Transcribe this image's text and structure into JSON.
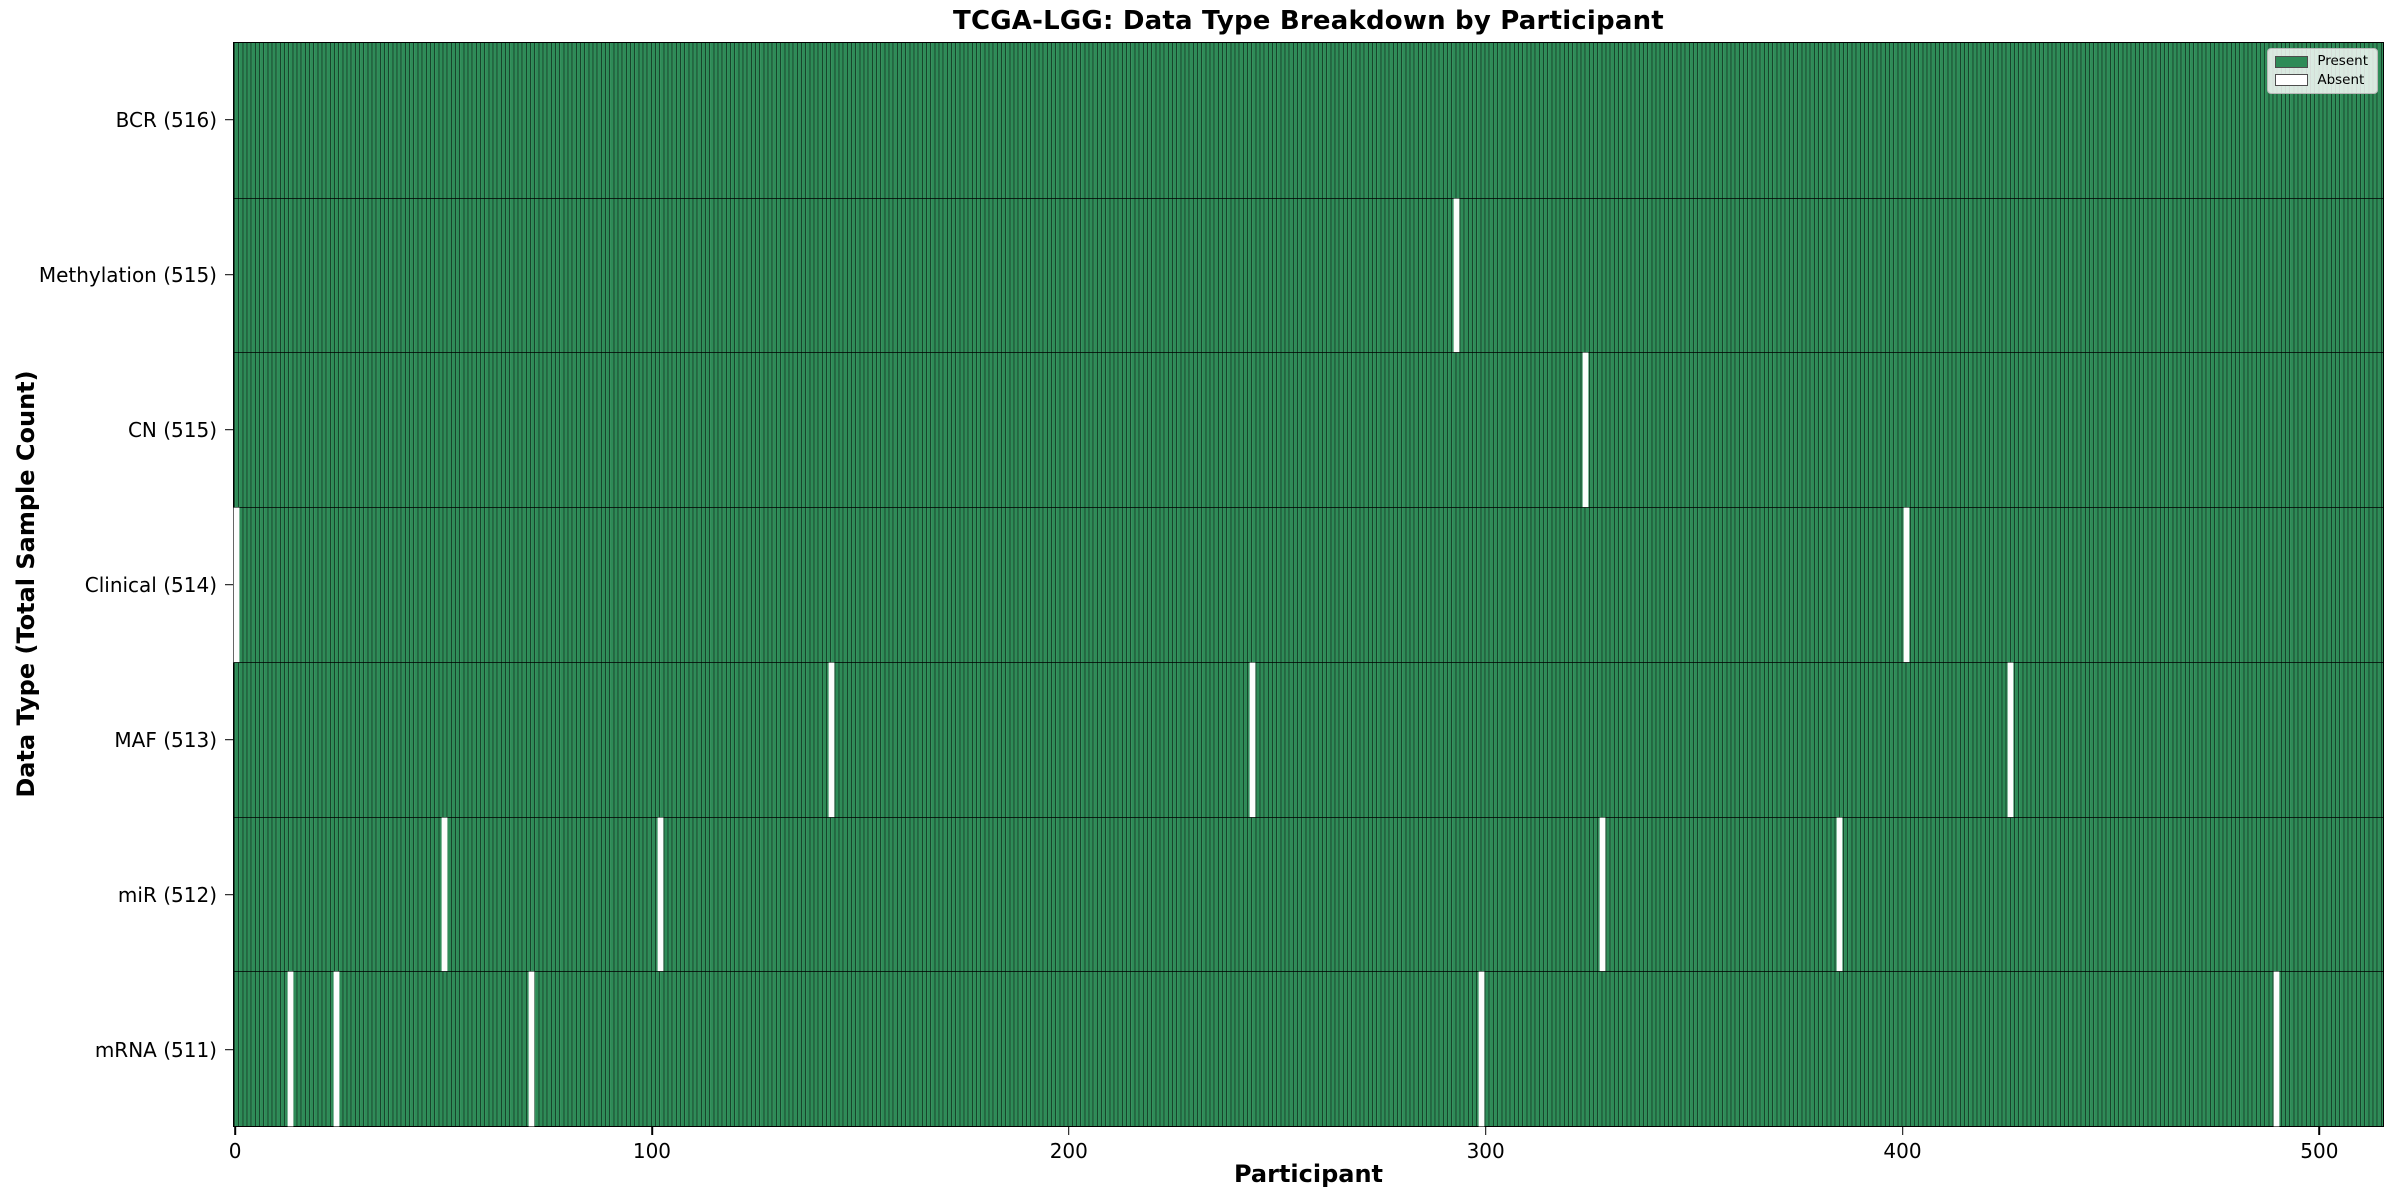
{
  "title": "TCGA-LGG: Data Type Breakdown by Participant",
  "chart_data": {
    "type": "heatmap",
    "title": "TCGA-LGG: Data Type Breakdown by Participant",
    "xlabel": "Participant",
    "ylabel": "Data Type (Total Sample Count)",
    "total_participants": 516,
    "x_ticks": [
      0,
      100,
      200,
      300,
      400,
      500
    ],
    "x_range": [
      0,
      516
    ],
    "grid": false,
    "legend_position": "upper right",
    "legend": {
      "present_label": "Present",
      "absent_label": "Absent"
    },
    "colors": {
      "present": "#2e8b57",
      "absent": "#fdfdfd",
      "bar_edge": "#1c4a30",
      "row_separator": "#1a1a1a"
    },
    "rows": [
      {
        "name": "BCR",
        "label": "BCR (516)",
        "present_count": 516,
        "absent_participants": []
      },
      {
        "name": "Methylation",
        "label": "Methylation (515)",
        "present_count": 515,
        "absent_participants": [
          293
        ]
      },
      {
        "name": "CN",
        "label": "CN (515)",
        "present_count": 515,
        "absent_participants": [
          324
        ]
      },
      {
        "name": "Clinical",
        "label": "Clinical (514)",
        "present_count": 514,
        "absent_participants": [
          0,
          401
        ]
      },
      {
        "name": "MAF",
        "label": "MAF (513)",
        "present_count": 513,
        "absent_participants": [
          143,
          244,
          426
        ]
      },
      {
        "name": "miR",
        "label": "miR (512)",
        "present_count": 512,
        "absent_participants": [
          50,
          102,
          328,
          385
        ]
      },
      {
        "name": "mRNA",
        "label": "mRNA (511)",
        "present_count": 511,
        "absent_participants": [
          13,
          24,
          71,
          299,
          490
        ]
      }
    ]
  }
}
